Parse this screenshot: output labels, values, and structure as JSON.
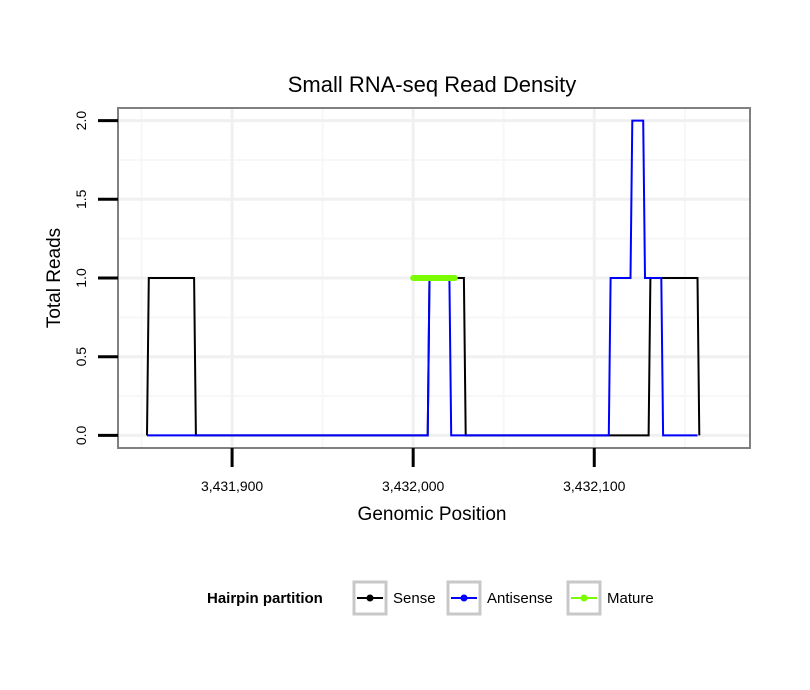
{
  "chart_data": {
    "type": "line",
    "title": "Small RNA-seq Read Density",
    "xlabel": "Genomic Position",
    "ylabel": "Total Reads",
    "xlim": [
      3431837,
      3432186
    ],
    "ylim": [
      -0.08,
      2.08
    ],
    "x_ticks": [
      3431900,
      3432000,
      3432100
    ],
    "x_tick_labels": [
      "3,431,900",
      "3,432,000",
      "3,432,100"
    ],
    "y_ticks": [
      0,
      0.5,
      1,
      1.5,
      2
    ],
    "y_tick_labels": [
      "0.0",
      "0.5",
      "1.0",
      "1.5",
      "2.0"
    ],
    "grid": true,
    "legend_position": "bottom",
    "legend_title": "Hairpin partition",
    "series": [
      {
        "name": "Sense",
        "color": "#000000",
        "x": [
          3431853,
          3431854,
          3431879,
          3431880,
          3432008,
          3432009,
          3432028,
          3432029,
          3432130,
          3432131,
          3432157,
          3432158
        ],
        "y": [
          0,
          1,
          1,
          0,
          0,
          1,
          1,
          0,
          0,
          1,
          1,
          0
        ]
      },
      {
        "name": "Antisense",
        "color": "#0000ff",
        "x": [
          3431853,
          3432008,
          3432009,
          3432020,
          3432021,
          3432108,
          3432109,
          3432120,
          3432121,
          3432127,
          3432128,
          3432137,
          3432138,
          3432146,
          3432147,
          3432157
        ],
        "y": [
          0,
          0,
          1,
          1,
          0,
          0,
          1,
          1,
          2,
          2,
          1,
          1,
          0,
          0,
          0,
          0
        ]
      },
      {
        "name": "Mature",
        "color": "#7cfc00",
        "x": [
          3432000,
          3432023
        ],
        "y": [
          1,
          1
        ]
      }
    ]
  }
}
